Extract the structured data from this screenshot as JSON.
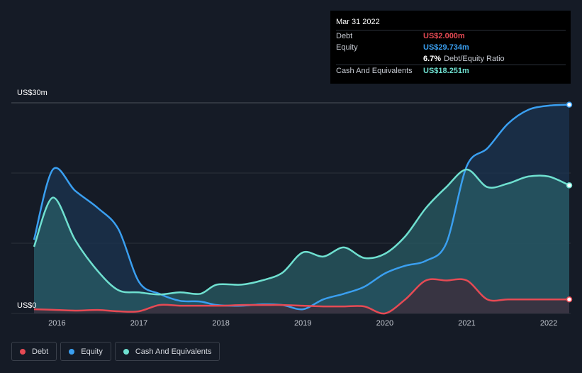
{
  "chart_data": {
    "type": "area",
    "title": "",
    "ylabel": "",
    "xlabel": "",
    "ylim": [
      0,
      30
    ],
    "xlim": [
      2015.72,
      2022.25
    ],
    "y_tick_labels": [
      {
        "value": 30,
        "label": "US$30m"
      },
      {
        "value": 0,
        "label": "US$0"
      }
    ],
    "gridlines": [
      30,
      20,
      10,
      0
    ],
    "x_tick_labels": [
      {
        "value": 2016,
        "label": "2016"
      },
      {
        "value": 2017,
        "label": "2017"
      },
      {
        "value": 2018,
        "label": "2018"
      },
      {
        "value": 2019,
        "label": "2019"
      },
      {
        "value": 2020,
        "label": "2020"
      },
      {
        "value": 2021,
        "label": "2021"
      },
      {
        "value": 2022,
        "label": "2022"
      }
    ],
    "series": [
      {
        "name": "Equity",
        "color": "#3a9ff0",
        "fill": "#1b3452",
        "x": [
          2015.72,
          2015.95,
          2016.22,
          2016.5,
          2016.75,
          2017.0,
          2017.25,
          2017.5,
          2017.75,
          2017.95,
          2018.25,
          2018.5,
          2018.75,
          2019.0,
          2019.25,
          2019.5,
          2019.75,
          2020.0,
          2020.25,
          2020.5,
          2020.75,
          2021.0,
          2021.25,
          2021.5,
          2021.75,
          2022.0,
          2022.25
        ],
        "values": [
          10.5,
          20.5,
          17.5,
          15.0,
          12.0,
          4.5,
          2.8,
          1.8,
          1.7,
          1.2,
          1.1,
          1.3,
          1.2,
          0.6,
          2.0,
          2.8,
          3.8,
          5.7,
          6.8,
          7.5,
          10.0,
          21.0,
          23.5,
          27.0,
          29.0,
          29.6,
          29.734
        ]
      },
      {
        "name": "Cash And Equivalents",
        "color": "#6fe0d0",
        "fill": "#2a6068",
        "x": [
          2015.72,
          2015.95,
          2016.22,
          2016.5,
          2016.75,
          2017.0,
          2017.25,
          2017.5,
          2017.75,
          2017.95,
          2018.25,
          2018.5,
          2018.75,
          2019.0,
          2019.25,
          2019.5,
          2019.75,
          2020.0,
          2020.25,
          2020.5,
          2020.75,
          2021.0,
          2021.25,
          2021.5,
          2021.75,
          2022.0,
          2022.25
        ],
        "values": [
          9.5,
          16.5,
          10.5,
          6.0,
          3.3,
          3.0,
          2.7,
          3.0,
          2.8,
          4.1,
          4.1,
          4.7,
          5.8,
          8.7,
          8.1,
          9.4,
          7.9,
          8.5,
          11.0,
          15.0,
          18.0,
          20.5,
          18.0,
          18.5,
          19.5,
          19.5,
          18.251
        ]
      },
      {
        "name": "Debt",
        "color": "#e64a54",
        "fill": "#3c2f3d",
        "x": [
          2015.72,
          2016.0,
          2016.25,
          2016.5,
          2016.75,
          2017.0,
          2017.25,
          2017.5,
          2017.75,
          2018.0,
          2018.25,
          2018.5,
          2018.75,
          2019.0,
          2019.25,
          2019.5,
          2019.75,
          2020.0,
          2020.25,
          2020.5,
          2020.75,
          2021.0,
          2021.25,
          2021.5,
          2021.75,
          2022.0,
          2022.25
        ],
        "values": [
          0.6,
          0.5,
          0.4,
          0.5,
          0.3,
          0.3,
          1.2,
          1.1,
          1.1,
          1.1,
          1.2,
          1.2,
          1.2,
          1.1,
          1.0,
          1.0,
          1.0,
          0.0,
          2.0,
          4.7,
          4.7,
          4.7,
          2.0,
          2.0,
          2.0,
          2.0,
          2.0
        ]
      }
    ],
    "tooltip": {
      "date": "Mar 31 2022",
      "rows": [
        {
          "label": "Debt",
          "value": "US$2.000m"
        },
        {
          "label": "Equity",
          "value": "US$29.734m"
        },
        {
          "ratio_value": "6.7%",
          "ratio_label": "Debt/Equity Ratio"
        },
        {
          "label": "Cash And Equivalents",
          "value": "US$18.251m"
        }
      ]
    },
    "legend": [
      {
        "label": "Debt",
        "color": "#e64a54"
      },
      {
        "label": "Equity",
        "color": "#3a9ff0"
      },
      {
        "label": "Cash And Equivalents",
        "color": "#6fe0d0"
      }
    ]
  }
}
